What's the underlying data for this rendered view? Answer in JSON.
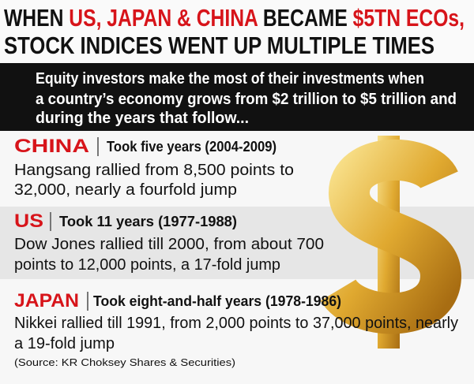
{
  "header": {
    "title": [
      [
        {
          "text": "WHEN ",
          "color": "#111111"
        },
        {
          "text": "US, JAPAN & CHINA",
          "color": "#d7141a"
        },
        {
          "text": " BECAME ",
          "color": "#111111"
        },
        {
          "text": "$5TN ECOs,",
          "color": "#d7141a"
        }
      ],
      [
        {
          "text": "STOCK INDICES WENT UP MULTIPLE TIMES",
          "color": "#111111"
        }
      ]
    ]
  },
  "intro": [
    "Equity investors make the most of their investments when",
    "a country’s economy grows from $2 trillion to $5 trillion and",
    "during the years that follow..."
  ],
  "sections": [
    {
      "country": "CHINA",
      "period": "Took five years (2004-2009)",
      "body": [
        "Hangsang rallied from 8,500 points to",
        "32,000, nearly a fourfold jump"
      ]
    },
    {
      "country": "US",
      "period": "Took 11 years (1977-1988)",
      "body": [
        "Dow Jones rallied till 2000, from about 700",
        "points to 12,000 points, a 17-fold jump"
      ]
    },
    {
      "country": "JAPAN",
      "period": "Took eight-and-half years (1978-1986)",
      "body": [
        "Nikkei rallied till 1991, from 2,000 points to 37,000 points, nearly",
        "a 19-fold jump"
      ]
    }
  ],
  "source": "(Source: KR Choksey Shares & Securities)"
}
